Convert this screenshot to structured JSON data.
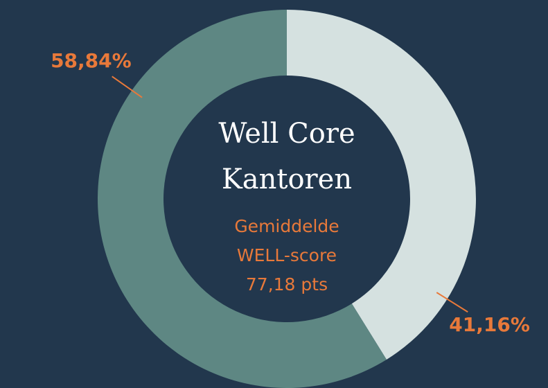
{
  "chart_data": {
    "type": "pie",
    "title": "Well Core Kantoren",
    "subtitle": "Gemiddelde WELL-score 77,18 pts",
    "values": [
      41.16,
      58.84
    ],
    "value_labels": [
      "41,16%",
      "58,84%"
    ],
    "colors": [
      "#d5e1e0",
      "#5e8783"
    ],
    "label_color": "#e8793a",
    "donut": true
  }
}
